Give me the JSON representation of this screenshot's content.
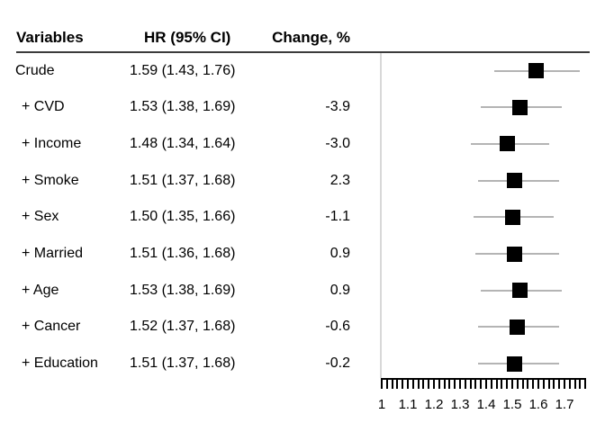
{
  "table": {
    "headers": {
      "variables": "Variables",
      "hr_ci": "HR (95% CI)",
      "change": "Change, %"
    },
    "rows": [
      {
        "variable": "Crude",
        "hr_ci": "1.59 (1.43, 1.76)",
        "change": ""
      },
      {
        "variable": "+ CVD",
        "hr_ci": "1.53 (1.38, 1.69)",
        "change": "-3.9"
      },
      {
        "variable": "+ Income",
        "hr_ci": "1.48 (1.34, 1.64)",
        "change": "-3.0"
      },
      {
        "variable": "+ Smoke",
        "hr_ci": "1.51 (1.37, 1.68)",
        "change": "2.3"
      },
      {
        "variable": "+ Sex",
        "hr_ci": "1.50 (1.35, 1.66)",
        "change": "-1.1"
      },
      {
        "variable": "+ Married",
        "hr_ci": "1.51 (1.36, 1.68)",
        "change": "0.9"
      },
      {
        "variable": "+ Age",
        "hr_ci": "1.53 (1.38, 1.69)",
        "change": "0.9"
      },
      {
        "variable": "+ Cancer",
        "hr_ci": "1.52 (1.37, 1.68)",
        "change": "-0.6"
      },
      {
        "variable": "+ Education",
        "hr_ci": "1.51 (1.37, 1.68)",
        "change": "-0.2"
      }
    ]
  },
  "chart_data": {
    "type": "scatter",
    "subtype": "forest-plot",
    "title": "",
    "xlabel": "",
    "ylabel": "",
    "xlim": [
      1.0,
      1.78
    ],
    "x_tick_labels": [
      "1",
      "1.1",
      "1.2",
      "1.3",
      "1.4",
      "1.5",
      "1.6",
      "1.7"
    ],
    "x_tick_values": [
      1,
      1.1,
      1.2,
      1.3,
      1.4,
      1.5,
      1.6,
      1.7
    ],
    "minor_tick_step": 0.02,
    "grid": false,
    "legend": false,
    "series": [
      {
        "name": "Crude",
        "hr": 1.59,
        "ci_lower": 1.43,
        "ci_upper": 1.76,
        "change_pct": null
      },
      {
        "name": "+ CVD",
        "hr": 1.53,
        "ci_lower": 1.38,
        "ci_upper": 1.69,
        "change_pct": -3.9
      },
      {
        "name": "+ Income",
        "hr": 1.48,
        "ci_lower": 1.34,
        "ci_upper": 1.64,
        "change_pct": -3.0
      },
      {
        "name": "+ Smoke",
        "hr": 1.51,
        "ci_lower": 1.37,
        "ci_upper": 1.68,
        "change_pct": 2.3
      },
      {
        "name": "+ Sex",
        "hr": 1.5,
        "ci_lower": 1.35,
        "ci_upper": 1.66,
        "change_pct": -1.1
      },
      {
        "name": "+ Married",
        "hr": 1.51,
        "ci_lower": 1.36,
        "ci_upper": 1.68,
        "change_pct": 0.9
      },
      {
        "name": "+ Age",
        "hr": 1.53,
        "ci_lower": 1.38,
        "ci_upper": 1.69,
        "change_pct": 0.9
      },
      {
        "name": "+ Cancer",
        "hr": 1.52,
        "ci_lower": 1.37,
        "ci_upper": 1.68,
        "change_pct": -0.6
      },
      {
        "name": "+ Education",
        "hr": 1.51,
        "ci_lower": 1.37,
        "ci_upper": 1.68,
        "change_pct": -0.2
      }
    ]
  },
  "colors": {
    "background": "#ffffff",
    "text": "#000000",
    "marker": "#000000",
    "ci_line": "#b4b4b4",
    "reference_line": "#d8d8d8",
    "header_rule": "#3b3b3b",
    "axis": "#000000"
  }
}
